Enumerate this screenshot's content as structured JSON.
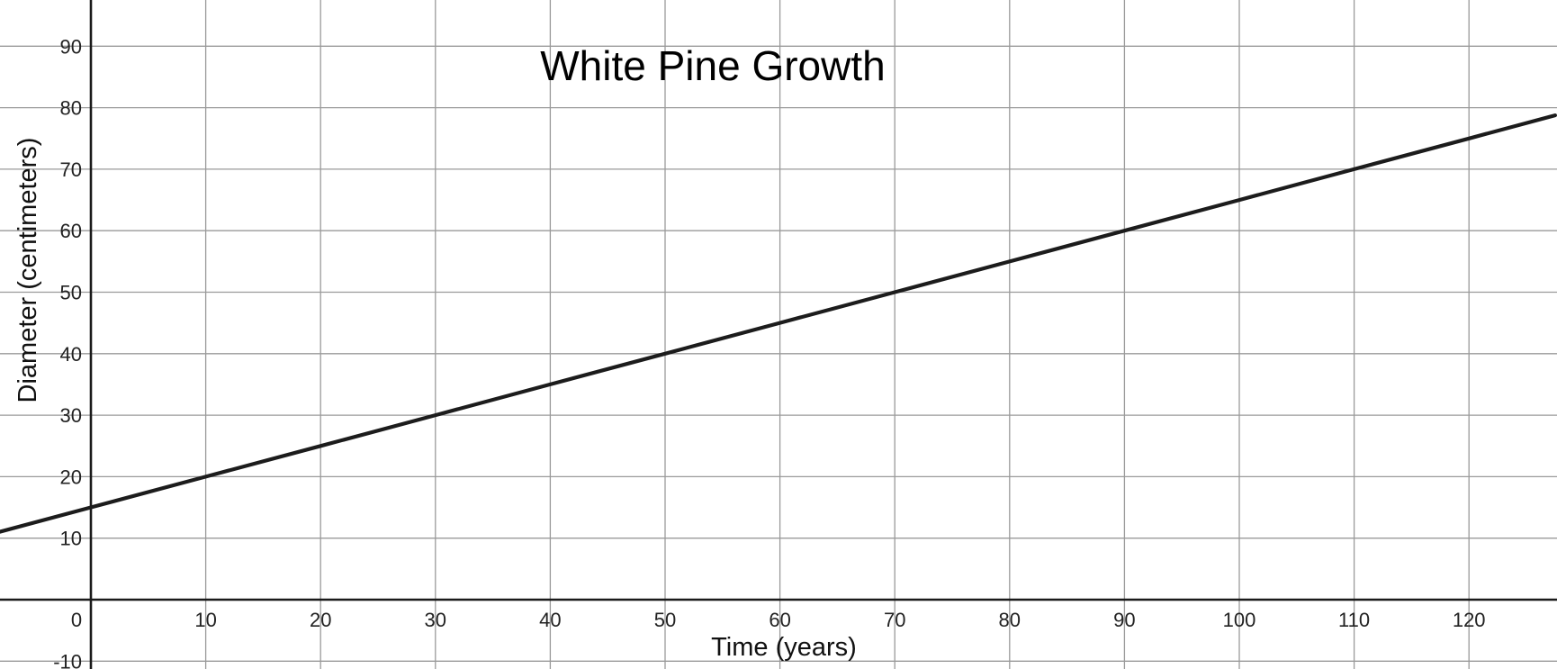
{
  "chart_data": {
    "type": "line",
    "title": "White Pine Growth",
    "xlabel": "Time (years)",
    "ylabel": "Diameter (centimeters)",
    "xlim": [
      -8,
      127.5
    ],
    "ylim": [
      -10,
      97.5
    ],
    "x_ticks": [
      0,
      10,
      20,
      30,
      40,
      50,
      60,
      70,
      80,
      90,
      100,
      110,
      120
    ],
    "y_ticks": [
      -10,
      10,
      20,
      30,
      40,
      50,
      60,
      70,
      80,
      90
    ],
    "x_tick_labels": [
      "0",
      "10",
      "20",
      "30",
      "40",
      "50",
      "60",
      "70",
      "80",
      "90",
      "100",
      "110",
      "120"
    ],
    "y_tick_labels": [
      "-10",
      "10",
      "20",
      "30",
      "40",
      "50",
      "60",
      "70",
      "80",
      "90"
    ],
    "grid": true,
    "series": [
      {
        "x": [
          -8,
          0,
          10,
          20,
          30,
          40,
          50,
          60,
          70,
          80,
          90,
          100,
          110,
          120,
          127.5
        ],
        "values": [
          11,
          15,
          20,
          25,
          30,
          35,
          40,
          45,
          50,
          55,
          60,
          65,
          70,
          75,
          78.75
        ],
        "color": "#1c1c1c"
      }
    ]
  }
}
